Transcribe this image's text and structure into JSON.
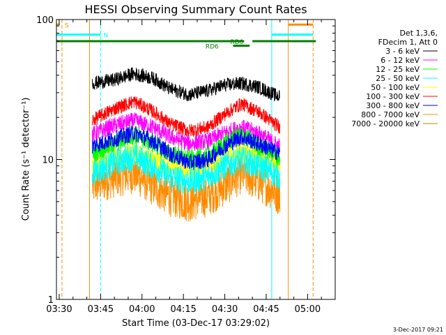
{
  "chart_data": {
    "type": "line",
    "title": "HESSI Observing Summary Count Rates",
    "xlabel": "Start Time (03-Dec-17 03:29:02)",
    "ylabel": "Count Rate (s⁻¹ detector⁻¹)",
    "x_ticks": [
      "03:30",
      "03:45",
      "04:00",
      "04:15",
      "04:30",
      "04:45",
      "05:00"
    ],
    "xlim": [
      "03:29",
      "05:10"
    ],
    "y_scale": "log",
    "ylim": [
      1,
      100
    ],
    "y_ticks": [
      "1",
      "10",
      "100"
    ],
    "grid": false,
    "legend_position": "right",
    "legend_header": [
      "Det 1,3,6,",
      "FDecim 1, Att 0"
    ],
    "series": [
      {
        "name": "3 - 6 keV",
        "color": "#000000",
        "x": [
          "03:42",
          "03:50",
          "03:57",
          "04:04",
          "04:10",
          "04:17",
          "04:24",
          "04:30",
          "04:36",
          "04:42",
          "04:48",
          "04:50"
        ],
        "y": [
          35,
          37,
          41,
          38,
          32,
          29,
          31,
          34,
          35,
          33,
          29,
          28
        ],
        "noise": 0.05
      },
      {
        "name": "6 - 12 keV",
        "color": "#ff00ff",
        "x": [
          "03:42",
          "03:50",
          "03:57",
          "04:04",
          "04:10",
          "04:17",
          "04:24",
          "04:30",
          "04:36",
          "04:42",
          "04:48",
          "04:50"
        ],
        "y": [
          15,
          17.5,
          19,
          17,
          14.5,
          13,
          13.5,
          15.5,
          17,
          15.5,
          13,
          12.5
        ],
        "noise": 0.06
      },
      {
        "name": "12 - 25 keV",
        "color": "#00ff00",
        "x": [
          "03:42",
          "03:50",
          "03:57",
          "04:04",
          "04:10",
          "04:17",
          "04:24",
          "04:30",
          "04:36",
          "04:42",
          "04:48",
          "04:50"
        ],
        "y": [
          11,
          13,
          15,
          13,
          11,
          10,
          10.5,
          13,
          15,
          12.5,
          11,
          10
        ],
        "noise": 0.07
      },
      {
        "name": "25 - 50 keV",
        "color": "#00ffff",
        "x": [
          "03:42",
          "03:50",
          "03:57",
          "04:04",
          "04:10",
          "04:17",
          "04:24",
          "04:30",
          "04:36",
          "04:42",
          "04:48",
          "04:50"
        ],
        "y": [
          8,
          9.5,
          10.5,
          9,
          7.5,
          7,
          7.5,
          9,
          10,
          9,
          8,
          7.5
        ],
        "noise": 0.1
      },
      {
        "name": "50 - 100 keV",
        "color": "#ffff00",
        "x": [
          "03:42",
          "03:50",
          "03:57",
          "04:04",
          "04:10",
          "04:17",
          "04:24",
          "04:30",
          "04:36",
          "04:42",
          "04:48",
          "04:50"
        ],
        "y": [
          9.5,
          10.5,
          11,
          10,
          9,
          8.5,
          9,
          10.5,
          11.5,
          10.5,
          9.5,
          9
        ],
        "noise": 0.08
      },
      {
        "name": "100 - 300 keV",
        "color": "#ff0000",
        "x": [
          "03:42",
          "03:50",
          "03:57",
          "04:04",
          "04:10",
          "04:17",
          "04:24",
          "04:30",
          "04:36",
          "04:42",
          "04:48",
          "04:50"
        ],
        "y": [
          19,
          23,
          26,
          22,
          18,
          16,
          17,
          21,
          25,
          22,
          18,
          17
        ],
        "noise": 0.05
      },
      {
        "name": "300 - 800 keV",
        "color": "#0000ff",
        "x": [
          "03:42",
          "03:50",
          "03:57",
          "04:04",
          "04:10",
          "04:17",
          "04:24",
          "04:30",
          "04:36",
          "04:42",
          "04:48",
          "04:50"
        ],
        "y": [
          12.5,
          14,
          15.5,
          13.5,
          11,
          9.5,
          10,
          12.5,
          14.5,
          13,
          11.5,
          11
        ],
        "noise": 0.06
      },
      {
        "name": "800 - 7000 keV",
        "color": "#ff8c00",
        "x": [
          "03:42",
          "03:50",
          "03:57",
          "04:04",
          "04:10",
          "04:17",
          "04:24",
          "04:30",
          "04:36",
          "04:42",
          "04:48",
          "04:50"
        ],
        "y": [
          6.5,
          7.5,
          8,
          6.5,
          5.5,
          5,
          5.5,
          6.5,
          8,
          7,
          6,
          5.5
        ],
        "noise": 0.15
      },
      {
        "name": "7000 - 20000 keV",
        "color": "#b8860b",
        "x": [],
        "y": [],
        "noise": 0
      }
    ],
    "annotations": [
      {
        "text": "S",
        "color": "#ff8c00"
      },
      {
        "text": "N",
        "color": "#00ffff"
      },
      {
        "text": "RD0",
        "color": "#008000"
      },
      {
        "text": "RD6",
        "color": "#008000"
      }
    ],
    "flags": [
      {
        "label": "S",
        "color": "#ff8c00",
        "y": 92,
        "segments": [
          [
            "03:29",
            "03:30"
          ],
          [
            "04:53",
            "05:02"
          ]
        ]
      },
      {
        "label": "N",
        "color": "#00ffff",
        "y": 78,
        "segments": [
          [
            "03:29",
            "03:45"
          ],
          [
            "04:47",
            "05:02"
          ]
        ]
      },
      {
        "label": "RD0",
        "color": "#008000",
        "y": 70,
        "segments": [
          [
            "03:29",
            "04:37"
          ],
          [
            "04:40",
            "05:03"
          ]
        ]
      },
      {
        "label": "RD6",
        "color": "#008000",
        "y": 65,
        "segments": [
          [
            "04:33",
            "04:39"
          ]
        ]
      }
    ],
    "vertical_lines": [
      {
        "x": "03:29",
        "color": "#00ffff",
        "style": "solid"
      },
      {
        "x": "03:31",
        "color": "#ff8c00",
        "style": "dashed"
      },
      {
        "x": "03:41",
        "color": "#ff8c00",
        "style": "solid"
      },
      {
        "x": "03:45",
        "color": "#00ffff",
        "style": "dashed"
      },
      {
        "x": "04:47",
        "color": "#00ffff",
        "style": "solid"
      },
      {
        "x": "04:53",
        "color": "#ff8c00",
        "style": "solid"
      },
      {
        "x": "05:02",
        "color": "#ff8c00",
        "style": "dashed"
      }
    ]
  },
  "footer": {
    "date_stamp": "3-Dec-2017 09:21"
  }
}
